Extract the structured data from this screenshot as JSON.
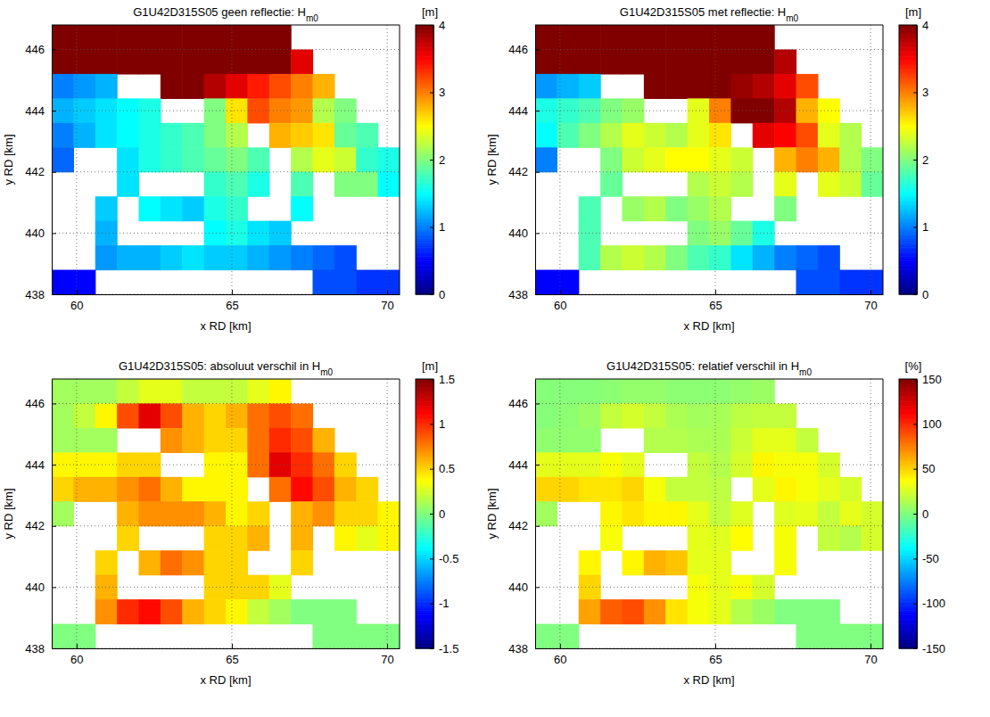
{
  "chart_data": [
    {
      "type": "heatmap",
      "title": "G1U42D315S05 geen reflectie: H",
      "title_sub": "m0",
      "xlabel": "x RD [km]",
      "ylabel": "y RD [km]",
      "xlim": [
        59.2,
        70.4
      ],
      "ylim": [
        438,
        446.8
      ],
      "xticks": [
        60,
        65,
        70
      ],
      "yticks": [
        438,
        440,
        442,
        444,
        446
      ],
      "grid": true,
      "x": [
        59.55,
        60.25,
        60.95,
        61.65,
        62.35,
        63.05,
        63.75,
        64.45,
        65.15,
        65.85,
        66.55,
        67.25,
        67.95,
        68.65,
        69.35,
        70.05
      ],
      "y": [
        446.4,
        445.6,
        444.8,
        444.0,
        443.2,
        442.4,
        441.6,
        440.8,
        440.0,
        439.2,
        438.4
      ],
      "cells": [
        [
          4.5,
          4.5,
          4.5,
          4.5,
          4.5,
          4.5,
          4.5,
          4.5,
          4.5,
          4.5,
          4.3,
          null,
          null,
          null,
          null,
          null
        ],
        [
          4.5,
          4.5,
          4.5,
          4.5,
          4.5,
          4.5,
          4.5,
          4.5,
          4.5,
          4.4,
          4.0,
          3.6,
          null,
          null,
          null,
          null
        ],
        [
          1.0,
          1.1,
          1.2,
          null,
          null,
          4.2,
          4.0,
          3.8,
          3.6,
          3.4,
          3.2,
          3.0,
          2.8,
          null,
          null,
          null
        ],
        [
          1.2,
          1.3,
          1.4,
          1.5,
          1.6,
          null,
          null,
          2.0,
          2.6,
          3.2,
          3.0,
          2.9,
          2.2,
          2.0,
          null,
          null
        ],
        [
          1.0,
          1.2,
          1.4,
          1.5,
          1.6,
          1.7,
          1.8,
          2.0,
          2.2,
          null,
          2.8,
          2.7,
          2.6,
          1.9,
          1.8,
          null
        ],
        [
          0.9,
          null,
          null,
          1.4,
          1.6,
          1.7,
          1.8,
          1.9,
          2.0,
          1.8,
          null,
          2.2,
          2.4,
          2.3,
          1.7,
          1.6
        ],
        [
          null,
          null,
          null,
          1.4,
          null,
          null,
          null,
          1.7,
          1.8,
          1.6,
          null,
          1.8,
          null,
          2.0,
          2.0,
          1.5
        ],
        [
          null,
          null,
          1.3,
          null,
          1.5,
          1.4,
          1.3,
          1.6,
          1.7,
          null,
          null,
          1.5,
          null,
          null,
          null,
          null
        ],
        [
          null,
          null,
          1.2,
          null,
          null,
          null,
          null,
          1.5,
          1.6,
          1.4,
          1.3,
          null,
          null,
          null,
          null,
          null
        ],
        [
          null,
          null,
          1.1,
          1.2,
          1.2,
          1.3,
          1.4,
          1.3,
          1.3,
          1.2,
          1.1,
          1.0,
          0.9,
          0.8,
          null,
          null
        ],
        [
          0.5,
          0.5,
          null,
          null,
          null,
          null,
          null,
          null,
          null,
          null,
          null,
          null,
          0.8,
          0.8,
          0.7,
          0.7
        ]
      ],
      "colorbar": {
        "range": [
          0,
          4
        ],
        "ticks": [
          0,
          1,
          2,
          3,
          4
        ],
        "label": "[m]"
      }
    },
    {
      "type": "heatmap",
      "title": "G1U42D315S05 met reflectie: H",
      "title_sub": "m0",
      "xlabel": "x RD [km]",
      "ylabel": "y RD [km]",
      "xlim": [
        59.2,
        70.4
      ],
      "ylim": [
        438,
        446.8
      ],
      "xticks": [
        60,
        65,
        70
      ],
      "yticks": [
        438,
        440,
        442,
        444,
        446
      ],
      "grid": true,
      "x": [
        59.55,
        60.25,
        60.95,
        61.65,
        62.35,
        63.05,
        63.75,
        64.45,
        65.15,
        65.85,
        66.55,
        67.25,
        67.95,
        68.65,
        69.35,
        70.05
      ],
      "y": [
        446.4,
        445.6,
        444.8,
        444.0,
        443.2,
        442.4,
        441.6,
        440.8,
        440.0,
        439.2,
        438.4
      ],
      "cells": [
        [
          4.5,
          4.5,
          4.5,
          4.5,
          4.5,
          4.5,
          4.5,
          4.5,
          4.5,
          4.5,
          4.4,
          null,
          null,
          null,
          null,
          null
        ],
        [
          4.5,
          4.5,
          4.5,
          4.5,
          4.5,
          4.5,
          4.5,
          4.5,
          4.5,
          4.5,
          4.3,
          3.8,
          null,
          null,
          null,
          null
        ],
        [
          1.1,
          1.2,
          1.3,
          null,
          null,
          4.4,
          4.3,
          4.2,
          4.0,
          3.9,
          3.8,
          3.6,
          3.2,
          null,
          null,
          null
        ],
        [
          1.6,
          1.7,
          1.8,
          2.0,
          2.1,
          null,
          null,
          2.4,
          3.0,
          4.0,
          4.0,
          3.8,
          2.8,
          2.5,
          null,
          null
        ],
        [
          1.5,
          1.8,
          2.0,
          2.2,
          2.4,
          2.3,
          2.2,
          2.4,
          2.6,
          null,
          3.6,
          3.5,
          3.2,
          2.4,
          2.2,
          null
        ],
        [
          1.0,
          null,
          null,
          2.0,
          2.3,
          2.4,
          2.5,
          2.5,
          2.4,
          2.3,
          null,
          2.8,
          3.0,
          2.8,
          2.2,
          2.0
        ],
        [
          null,
          null,
          null,
          1.9,
          null,
          null,
          null,
          2.2,
          2.3,
          2.2,
          null,
          2.4,
          null,
          2.4,
          2.3,
          1.9
        ],
        [
          null,
          null,
          1.8,
          null,
          2.1,
          2.2,
          2.0,
          2.1,
          2.2,
          null,
          null,
          2.0,
          null,
          null,
          null,
          null
        ],
        [
          null,
          null,
          1.8,
          null,
          null,
          null,
          null,
          2.0,
          2.1,
          1.9,
          1.6,
          null,
          null,
          null,
          null,
          null
        ],
        [
          null,
          null,
          1.8,
          2.2,
          2.3,
          2.2,
          2.0,
          1.8,
          1.7,
          1.4,
          1.2,
          1.0,
          0.9,
          0.8,
          null,
          null
        ],
        [
          0.5,
          0.5,
          null,
          null,
          null,
          null,
          null,
          null,
          null,
          null,
          null,
          null,
          0.8,
          0.8,
          0.7,
          0.7
        ]
      ],
      "colorbar": {
        "range": [
          0,
          4
        ],
        "ticks": [
          0,
          1,
          2,
          3,
          4
        ],
        "label": "[m]"
      }
    },
    {
      "type": "heatmap",
      "title": "G1U42D315S05: absoluut verschil in H",
      "title_sub": "m0",
      "xlabel": "x RD [km]",
      "ylabel": "y RD [km]",
      "xlim": [
        59.2,
        70.4
      ],
      "ylim": [
        438,
        446.8
      ],
      "xticks": [
        60,
        65,
        70
      ],
      "yticks": [
        438,
        440,
        442,
        444,
        446
      ],
      "grid": true,
      "x": [
        59.55,
        60.25,
        60.95,
        61.65,
        62.35,
        63.05,
        63.75,
        64.45,
        65.15,
        65.85,
        66.55,
        67.25,
        67.95,
        68.65,
        69.35,
        70.05
      ],
      "y": [
        446.4,
        445.6,
        444.8,
        444.0,
        443.2,
        442.4,
        441.6,
        440.8,
        440.0,
        439.2,
        438.4
      ],
      "cells": [
        [
          0.1,
          0.1,
          0.1,
          0.2,
          0.3,
          0.3,
          0.2,
          0.2,
          0.2,
          0.3,
          0.4,
          null,
          null,
          null,
          null,
          null
        ],
        [
          0.1,
          0.2,
          0.4,
          0.9,
          1.2,
          0.9,
          0.6,
          0.5,
          0.6,
          0.8,
          0.9,
          0.8,
          null,
          null,
          null,
          null
        ],
        [
          0.1,
          0.1,
          0.1,
          null,
          null,
          0.7,
          0.6,
          0.5,
          0.5,
          0.8,
          1.0,
          0.9,
          0.6,
          null,
          null,
          null
        ],
        [
          0.4,
          0.4,
          0.4,
          0.5,
          0.5,
          null,
          null,
          0.4,
          0.4,
          0.8,
          1.2,
          1.0,
          0.8,
          0.5,
          null,
          null
        ],
        [
          0.5,
          0.6,
          0.6,
          0.7,
          0.8,
          0.6,
          0.4,
          0.4,
          0.4,
          null,
          0.8,
          1.1,
          0.9,
          0.6,
          0.5,
          null
        ],
        [
          0.1,
          null,
          null,
          0.6,
          0.7,
          0.7,
          0.7,
          0.6,
          0.4,
          0.5,
          null,
          0.6,
          0.7,
          0.5,
          0.5,
          0.4
        ],
        [
          null,
          null,
          null,
          0.5,
          null,
          null,
          null,
          0.5,
          0.5,
          0.6,
          null,
          0.6,
          null,
          0.4,
          0.3,
          0.4
        ],
        [
          null,
          null,
          0.5,
          null,
          0.6,
          0.8,
          0.7,
          0.5,
          0.5,
          null,
          null,
          0.5,
          null,
          null,
          null,
          null
        ],
        [
          null,
          null,
          0.6,
          null,
          null,
          null,
          null,
          0.5,
          0.5,
          0.5,
          0.3,
          null,
          null,
          null,
          null,
          null
        ],
        [
          null,
          null,
          0.7,
          1.0,
          1.1,
          0.9,
          0.6,
          0.5,
          0.4,
          0.2,
          0.1,
          0.0,
          0.0,
          0.0,
          null,
          null
        ],
        [
          0.0,
          0.0,
          null,
          null,
          null,
          null,
          null,
          null,
          null,
          null,
          null,
          null,
          0.0,
          0.0,
          0.0,
          0.0
        ]
      ],
      "colorbar": {
        "range": [
          -1.5,
          1.5
        ],
        "ticks": [
          -1.5,
          -1,
          -0.5,
          0,
          0.5,
          1,
          1.5
        ],
        "label": "[m]"
      }
    },
    {
      "type": "heatmap",
      "title": "G1U42D315S05: relatief verschil in H",
      "title_sub": "m0",
      "xlabel": "x RD [km]",
      "ylabel": "y RD [km]",
      "xlim": [
        59.2,
        70.4
      ],
      "ylim": [
        438,
        446.8
      ],
      "xticks": [
        60,
        65,
        70
      ],
      "yticks": [
        438,
        440,
        442,
        444,
        446
      ],
      "grid": true,
      "x": [
        59.55,
        60.25,
        60.95,
        61.65,
        62.35,
        63.05,
        63.75,
        64.45,
        65.15,
        65.85,
        66.55,
        67.25,
        67.95,
        68.65,
        69.35,
        70.05
      ],
      "y": [
        446.4,
        445.6,
        444.8,
        444.0,
        443.2,
        442.4,
        441.6,
        440.8,
        440.0,
        439.2,
        438.4
      ],
      "cells": [
        [
          2,
          2,
          2,
          4,
          6,
          6,
          4,
          4,
          4,
          6,
          8,
          null,
          null,
          null,
          null,
          null
        ],
        [
          2,
          4,
          8,
          20,
          25,
          20,
          13,
          10,
          12,
          18,
          20,
          20,
          null,
          null,
          null,
          null
        ],
        [
          5,
          5,
          5,
          null,
          null,
          15,
          15,
          13,
          13,
          22,
          30,
          30,
          20,
          null,
          null,
          null
        ],
        [
          30,
          30,
          30,
          35,
          30,
          null,
          null,
          20,
          15,
          25,
          40,
          35,
          35,
          25,
          null,
          null
        ],
        [
          50,
          50,
          45,
          45,
          50,
          35,
          20,
          20,
          18,
          null,
          30,
          40,
          35,
          30,
          25,
          null
        ],
        [
          10,
          null,
          null,
          40,
          45,
          40,
          40,
          30,
          20,
          28,
          null,
          28,
          30,
          20,
          30,
          25
        ],
        [
          null,
          null,
          null,
          35,
          null,
          null,
          null,
          30,
          28,
          38,
          null,
          35,
          null,
          20,
          15,
          25
        ],
        [
          null,
          null,
          40,
          null,
          40,
          60,
          55,
          30,
          30,
          null,
          null,
          35,
          null,
          null,
          null,
          null
        ],
        [
          null,
          null,
          50,
          null,
          null,
          null,
          null,
          35,
          30,
          35,
          25,
          null,
          null,
          null,
          null,
          null
        ],
        [
          null,
          null,
          65,
          85,
          90,
          70,
          45,
          35,
          30,
          15,
          8,
          0,
          0,
          0,
          null,
          null
        ],
        [
          0,
          0,
          null,
          null,
          null,
          null,
          null,
          null,
          null,
          null,
          null,
          null,
          0,
          0,
          0,
          0
        ]
      ],
      "colorbar": {
        "range": [
          -150,
          150
        ],
        "ticks": [
          -150,
          -100,
          -50,
          0,
          50,
          100,
          150
        ],
        "label": "[%]"
      }
    }
  ]
}
